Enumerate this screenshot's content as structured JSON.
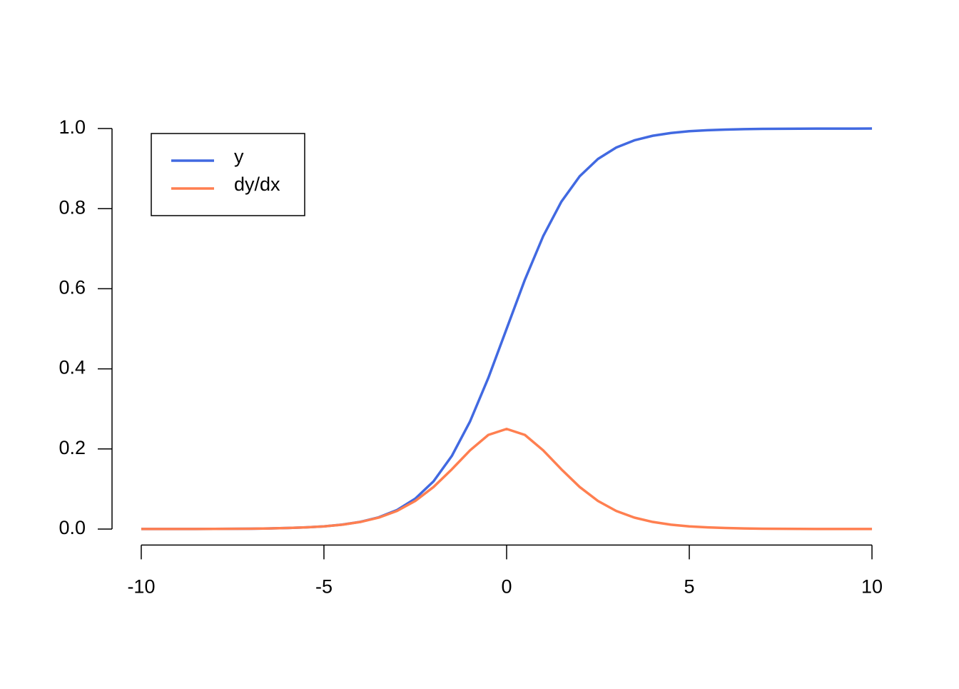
{
  "chart_data": {
    "type": "line",
    "x": [
      -10,
      -9.5,
      -9,
      -8.5,
      -8,
      -7.5,
      -7,
      -6.5,
      -6,
      -5.5,
      -5,
      -4.5,
      -4,
      -3.5,
      -3,
      -2.5,
      -2,
      -1.5,
      -1,
      -0.5,
      0,
      0.5,
      1,
      1.5,
      2,
      2.5,
      3,
      3.5,
      4,
      4.5,
      5,
      5.5,
      6,
      6.5,
      7,
      7.5,
      8,
      8.5,
      9,
      9.5,
      10
    ],
    "series": [
      {
        "name": "y",
        "color": "#4169e1",
        "values": [
          5e-05,
          7e-05,
          0.00012,
          0.0002,
          0.00034,
          0.00055,
          0.00091,
          0.0015,
          0.0025,
          0.0041,
          0.0067,
          0.011,
          0.018,
          0.0293,
          0.0474,
          0.0759,
          0.1192,
          0.1824,
          0.2689,
          0.3775,
          0.5,
          0.6225,
          0.7311,
          0.8176,
          0.8808,
          0.9241,
          0.9526,
          0.9707,
          0.982,
          0.989,
          0.9933,
          0.9959,
          0.9975,
          0.9985,
          0.9991,
          0.9994,
          0.9997,
          0.9998,
          0.9999,
          0.9999,
          1
        ]
      },
      {
        "name": "dy/dx",
        "color": "#ff7f50",
        "values": [
          5e-05,
          7e-05,
          0.00012,
          0.0002,
          0.00034,
          0.00055,
          0.00091,
          0.0015,
          0.0025,
          0.0041,
          0.0066,
          0.0109,
          0.0177,
          0.0285,
          0.0452,
          0.0701,
          0.105,
          0.1491,
          0.1966,
          0.235,
          0.25,
          0.235,
          0.1966,
          0.1491,
          0.105,
          0.0701,
          0.0452,
          0.0285,
          0.0177,
          0.0109,
          0.0066,
          0.0041,
          0.0025,
          0.0015,
          0.00091,
          0.00055,
          0.00034,
          0.0002,
          0.00012,
          7e-05,
          5e-05
        ]
      }
    ],
    "xlim": [
      -10.8,
      10.8
    ],
    "ylim": [
      -0.04,
      1.04
    ],
    "xticks": [
      -10,
      -5,
      0,
      5,
      10
    ],
    "yticks": [
      {
        "value": 0,
        "label": "0.0"
      },
      0.2,
      0.4,
      0.6,
      0.8,
      {
        "value": 1,
        "label": "1.0"
      }
    ],
    "legend": "top-left",
    "grid": false
  }
}
